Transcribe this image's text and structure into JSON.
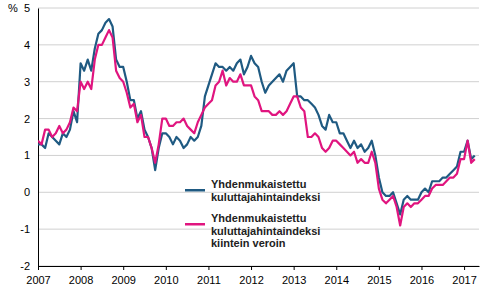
{
  "chart_data": {
    "type": "line",
    "ylabel": "%",
    "x": [
      2007,
      2007.083,
      2007.167,
      2007.25,
      2007.333,
      2007.417,
      2007.5,
      2007.583,
      2007.667,
      2007.75,
      2007.833,
      2007.917,
      2008,
      2008.083,
      2008.167,
      2008.25,
      2008.333,
      2008.417,
      2008.5,
      2008.583,
      2008.667,
      2008.75,
      2008.833,
      2008.917,
      2009,
      2009.083,
      2009.167,
      2009.25,
      2009.333,
      2009.417,
      2009.5,
      2009.583,
      2009.667,
      2009.75,
      2009.833,
      2009.917,
      2010,
      2010.083,
      2010.167,
      2010.25,
      2010.333,
      2010.417,
      2010.5,
      2010.583,
      2010.667,
      2010.75,
      2010.833,
      2010.917,
      2011,
      2011.083,
      2011.167,
      2011.25,
      2011.333,
      2011.417,
      2011.5,
      2011.583,
      2011.667,
      2011.75,
      2011.833,
      2011.917,
      2012,
      2012.083,
      2012.167,
      2012.25,
      2012.333,
      2012.417,
      2012.5,
      2012.583,
      2012.667,
      2012.75,
      2012.833,
      2012.917,
      2013,
      2013.083,
      2013.167,
      2013.25,
      2013.333,
      2013.417,
      2013.5,
      2013.583,
      2013.667,
      2013.75,
      2013.833,
      2013.917,
      2014,
      2014.083,
      2014.167,
      2014.25,
      2014.333,
      2014.417,
      2014.5,
      2014.583,
      2014.667,
      2014.75,
      2014.833,
      2014.917,
      2015,
      2015.083,
      2015.167,
      2015.25,
      2015.333,
      2015.417,
      2015.5,
      2015.583,
      2015.667,
      2015.75,
      2015.833,
      2015.917,
      2016,
      2016.083,
      2016.167,
      2016.25,
      2016.333,
      2016.417,
      2016.5,
      2016.583,
      2016.667,
      2016.75,
      2016.833,
      2016.917,
      2017,
      2017.083,
      2017.167,
      2017.25
    ],
    "series": [
      {
        "name": "Yhdenmukaistettu kuluttajahintaindeksi",
        "color": "#1f5a82",
        "values": [
          1.3,
          1.3,
          1.2,
          1.6,
          1.5,
          1.4,
          1.3,
          1.6,
          1.5,
          1.7,
          2.2,
          1.9,
          3.5,
          3.3,
          3.6,
          3.3,
          3.9,
          4.3,
          4.4,
          4.6,
          4.7,
          4.5,
          3.6,
          3.4,
          3.4,
          3.0,
          2.5,
          2.5,
          2.0,
          2.2,
          1.7,
          1.5,
          1.2,
          0.6,
          1.2,
          1.6,
          1.6,
          1.5,
          1.3,
          1.5,
          1.4,
          1.2,
          1.3,
          1.5,
          1.4,
          1.5,
          1.8,
          2.6,
          2.9,
          3.2,
          3.5,
          3.4,
          3.4,
          3.3,
          3.4,
          3.3,
          3.5,
          3.6,
          3.2,
          3.4,
          3.7,
          3.5,
          3.4,
          3.0,
          2.7,
          2.9,
          3.0,
          3.1,
          3.2,
          3.0,
          3.3,
          3.4,
          3.5,
          2.6,
          2.6,
          2.5,
          2.5,
          2.4,
          2.3,
          2.1,
          1.8,
          1.7,
          2.1,
          1.9,
          1.9,
          1.6,
          1.6,
          1.4,
          1.2,
          1.4,
          1.2,
          1.3,
          1.1,
          1.2,
          1.4,
          1.0,
          0.4,
          0.0,
          -0.1,
          -0.1,
          0.0,
          -0.3,
          -0.6,
          -0.2,
          -0.1,
          -0.2,
          -0.2,
          -0.2,
          0.0,
          0.1,
          0.0,
          0.3,
          0.3,
          0.3,
          0.4,
          0.4,
          0.5,
          0.6,
          0.7,
          1.1,
          1.1,
          1.4,
          0.9,
          1.0
        ]
      },
      {
        "name": "Yhdenmukaistettu kuluttajahintaindeksi kiintein veroin",
        "color": "#e0157f",
        "values": [
          1.4,
          1.3,
          1.7,
          1.7,
          1.5,
          1.6,
          1.8,
          1.6,
          1.7,
          1.9,
          2.3,
          2.2,
          3.0,
          2.8,
          3.0,
          2.8,
          3.6,
          4.0,
          4.0,
          4.2,
          4.4,
          4.2,
          3.3,
          3.1,
          3.0,
          2.7,
          2.3,
          2.4,
          1.9,
          2.1,
          1.5,
          1.5,
          1.2,
          0.8,
          1.3,
          2.0,
          2.0,
          1.8,
          1.8,
          1.9,
          1.9,
          2.0,
          1.8,
          1.7,
          1.6,
          1.9,
          2.1,
          2.3,
          2.4,
          2.5,
          2.9,
          3.0,
          3.3,
          2.9,
          3.1,
          3.0,
          3.0,
          3.2,
          2.9,
          2.9,
          2.9,
          2.6,
          2.5,
          2.2,
          2.2,
          2.2,
          2.1,
          2.1,
          2.2,
          2.1,
          2.2,
          2.4,
          2.6,
          2.6,
          2.3,
          2.2,
          1.5,
          1.5,
          1.6,
          1.5,
          1.2,
          1.1,
          1.2,
          1.4,
          1.4,
          1.3,
          1.2,
          1.1,
          1.0,
          1.1,
          0.8,
          0.9,
          0.8,
          0.8,
          1.1,
          0.8,
          0.1,
          -0.2,
          -0.3,
          -0.2,
          -0.1,
          -0.4,
          -0.9,
          -0.4,
          -0.3,
          -0.4,
          -0.3,
          -0.3,
          -0.2,
          -0.1,
          -0.1,
          0.1,
          0.2,
          0.2,
          0.2,
          0.3,
          0.4,
          0.4,
          0.5,
          0.9,
          0.9,
          1.4,
          0.8,
          0.9
        ]
      }
    ],
    "xlim": [
      2007,
      2017.35
    ],
    "xticks": [
      2007,
      2008,
      2009,
      2010,
      2011,
      2012,
      2013,
      2014,
      2015,
      2016,
      2017
    ],
    "ylim": [
      -2,
      5
    ],
    "yticks": [
      -2,
      -1,
      0,
      1,
      2,
      3,
      4,
      5
    ],
    "grid": true
  }
}
